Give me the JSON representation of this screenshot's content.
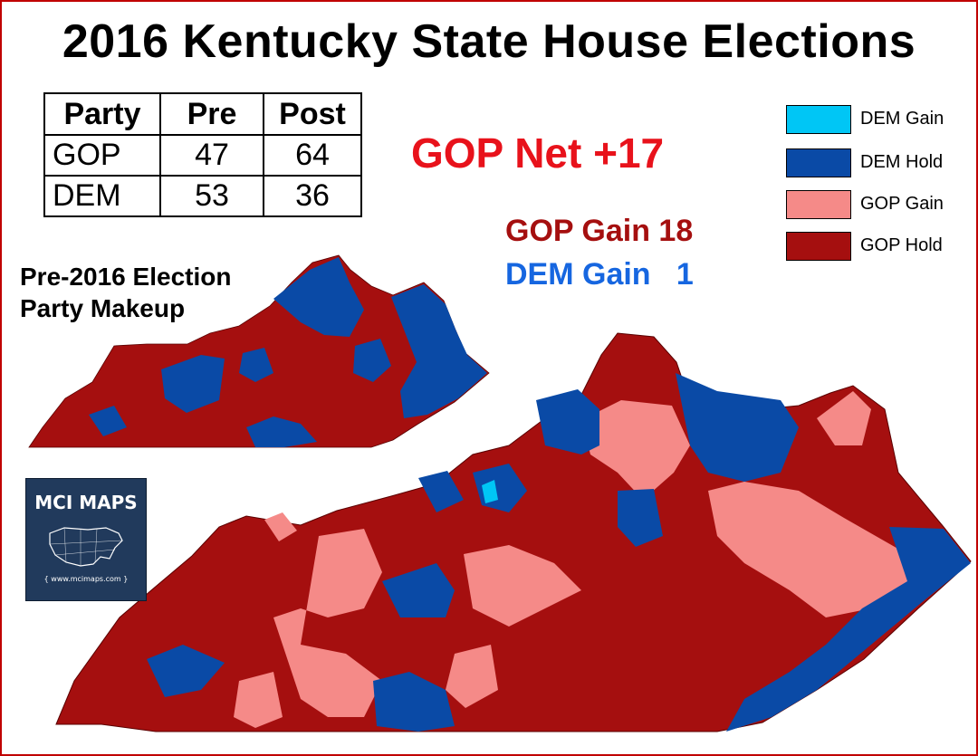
{
  "title": "2016 Kentucky State House Elections",
  "seat_table": {
    "headers": [
      "Party",
      "Pre",
      "Post"
    ],
    "rows": [
      {
        "party": "GOP",
        "pre": "47",
        "post": "64"
      },
      {
        "party": "DEM",
        "pre": "53",
        "post": "36"
      }
    ]
  },
  "net_change": "GOP Net +17",
  "gains": {
    "gop": "GOP Gain 18",
    "dem": "DEM Gain   1"
  },
  "pre_map_caption": [
    "Pre-2016 Election",
    "Party Makeup"
  ],
  "legend": [
    {
      "label": "DEM Gain",
      "color": "#00c6f5"
    },
    {
      "label": "DEM Hold",
      "color": "#0a4aa6"
    },
    {
      "label": "GOP Gain",
      "color": "#f58a88"
    },
    {
      "label": "GOP Hold",
      "color": "#a50f0f"
    }
  ],
  "logo": {
    "title": "MCI MAPS",
    "url": "{ www.mcimaps.com }"
  },
  "colors": {
    "gop_text": "#a50f0f",
    "net_text": "#e8121b",
    "dem_text": "#1666e0",
    "border": "#c00000"
  }
}
